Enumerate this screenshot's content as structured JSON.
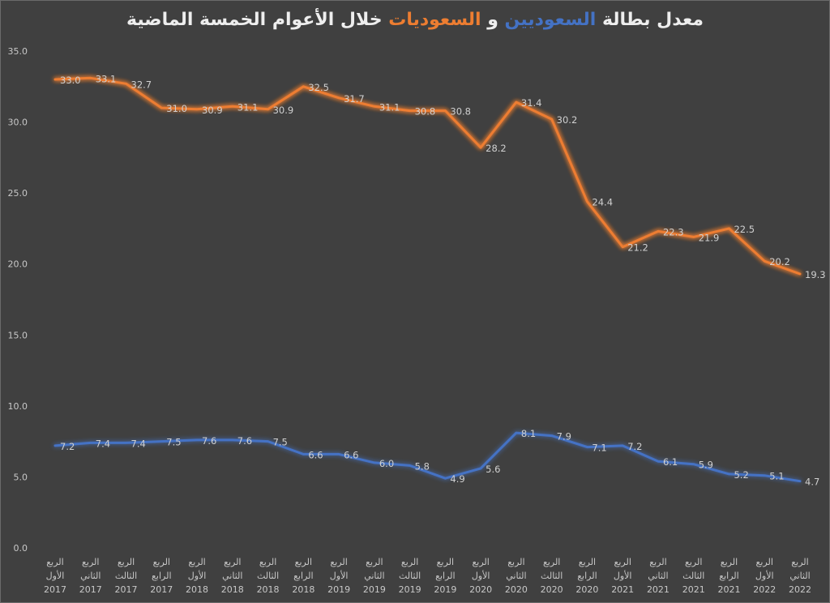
{
  "chart_data": {
    "type": "line",
    "title": "معدل بطالة السعوديين و السعوديات خلال الأعوام الخمسة الماضية",
    "title_parts": [
      {
        "text": "معدل بطالة ",
        "color": "#eeeeee"
      },
      {
        "text": "السعوديين",
        "color": "#4472c4"
      },
      {
        "text": " و ",
        "color": "#eeeeee"
      },
      {
        "text": "السعوديات",
        "color": "#ed7d31"
      },
      {
        "text": " خلال الأعوام الخمسة الماضية",
        "color": "#eeeeee"
      }
    ],
    "xlabel": "",
    "ylabel": "",
    "ylim": [
      0,
      35
    ],
    "yticks": [
      "0.0",
      "5.0",
      "10.0",
      "15.0",
      "20.0",
      "25.0",
      "30.0",
      "35.0"
    ],
    "grid": false,
    "legend": "none (series identified by title colors)",
    "categories": [
      {
        "quarter": "الربع",
        "ordinal": "الأول",
        "year": "2017"
      },
      {
        "quarter": "الربع",
        "ordinal": "الثاني",
        "year": "2017"
      },
      {
        "quarter": "الربع",
        "ordinal": "الثالث",
        "year": "2017"
      },
      {
        "quarter": "الربع",
        "ordinal": "الرابع",
        "year": "2017"
      },
      {
        "quarter": "الربع",
        "ordinal": "الأول",
        "year": "2018"
      },
      {
        "quarter": "الربع",
        "ordinal": "الثاني",
        "year": "2018"
      },
      {
        "quarter": "الربع",
        "ordinal": "الثالث",
        "year": "2018"
      },
      {
        "quarter": "الربع",
        "ordinal": "الرابع",
        "year": "2018"
      },
      {
        "quarter": "الربع",
        "ordinal": "الأول",
        "year": "2019"
      },
      {
        "quarter": "الربع",
        "ordinal": "الثاني",
        "year": "2019"
      },
      {
        "quarter": "الربع",
        "ordinal": "الثالث",
        "year": "2019"
      },
      {
        "quarter": "الربع",
        "ordinal": "الرابع",
        "year": "2019"
      },
      {
        "quarter": "الربع",
        "ordinal": "الأول",
        "year": "2020"
      },
      {
        "quarter": "الربع",
        "ordinal": "الثاني",
        "year": "2020"
      },
      {
        "quarter": "الربع",
        "ordinal": "الثالث",
        "year": "2020"
      },
      {
        "quarter": "الربع",
        "ordinal": "الرابع",
        "year": "2020"
      },
      {
        "quarter": "الربع",
        "ordinal": "الأول",
        "year": "2021"
      },
      {
        "quarter": "الربع",
        "ordinal": "الثاني",
        "year": "2021"
      },
      {
        "quarter": "الربع",
        "ordinal": "الثالث",
        "year": "2021"
      },
      {
        "quarter": "الربع",
        "ordinal": "الرابع",
        "year": "2021"
      },
      {
        "quarter": "الربع",
        "ordinal": "الأول",
        "year": "2022"
      },
      {
        "quarter": "الربع",
        "ordinal": "الثاني",
        "year": "2022"
      }
    ],
    "series": [
      {
        "name": "السعوديات",
        "color": "#ed7d31",
        "values": [
          33.0,
          33.1,
          32.7,
          31.0,
          30.9,
          31.1,
          30.9,
          32.5,
          31.7,
          31.1,
          30.8,
          30.8,
          28.2,
          31.4,
          30.2,
          24.4,
          21.2,
          22.3,
          21.9,
          22.5,
          20.2,
          19.3
        ],
        "labels": [
          "33.0",
          "33.1",
          "32.7",
          "31.0",
          "30.9",
          "31.1",
          "30.9",
          "32.5",
          "31.7",
          "31.1",
          "30.8",
          "30.8",
          "28.2",
          "31.4",
          "30.2",
          "24.4",
          "21.2",
          "22.3",
          "21.9",
          "22.5",
          "20.2",
          "19.3"
        ]
      },
      {
        "name": "السعوديين",
        "color": "#4472c4",
        "values": [
          7.2,
          7.4,
          7.4,
          7.5,
          7.6,
          7.6,
          7.5,
          6.6,
          6.6,
          6.0,
          5.8,
          4.9,
          5.6,
          8.1,
          7.9,
          7.1,
          7.2,
          6.1,
          5.9,
          5.2,
          5.1,
          4.7
        ],
        "labels": [
          "7.2",
          "7.4",
          "7.4",
          "7.5",
          "7.6",
          "7.6",
          "7.5",
          "6.6",
          "6.6",
          "6.0",
          "5.8",
          "4.9",
          "5.6",
          "8.1",
          "7.9",
          "7.1",
          "7.2",
          "6.1",
          "5.9",
          "5.2",
          "5.1",
          "4.7"
        ]
      }
    ]
  }
}
